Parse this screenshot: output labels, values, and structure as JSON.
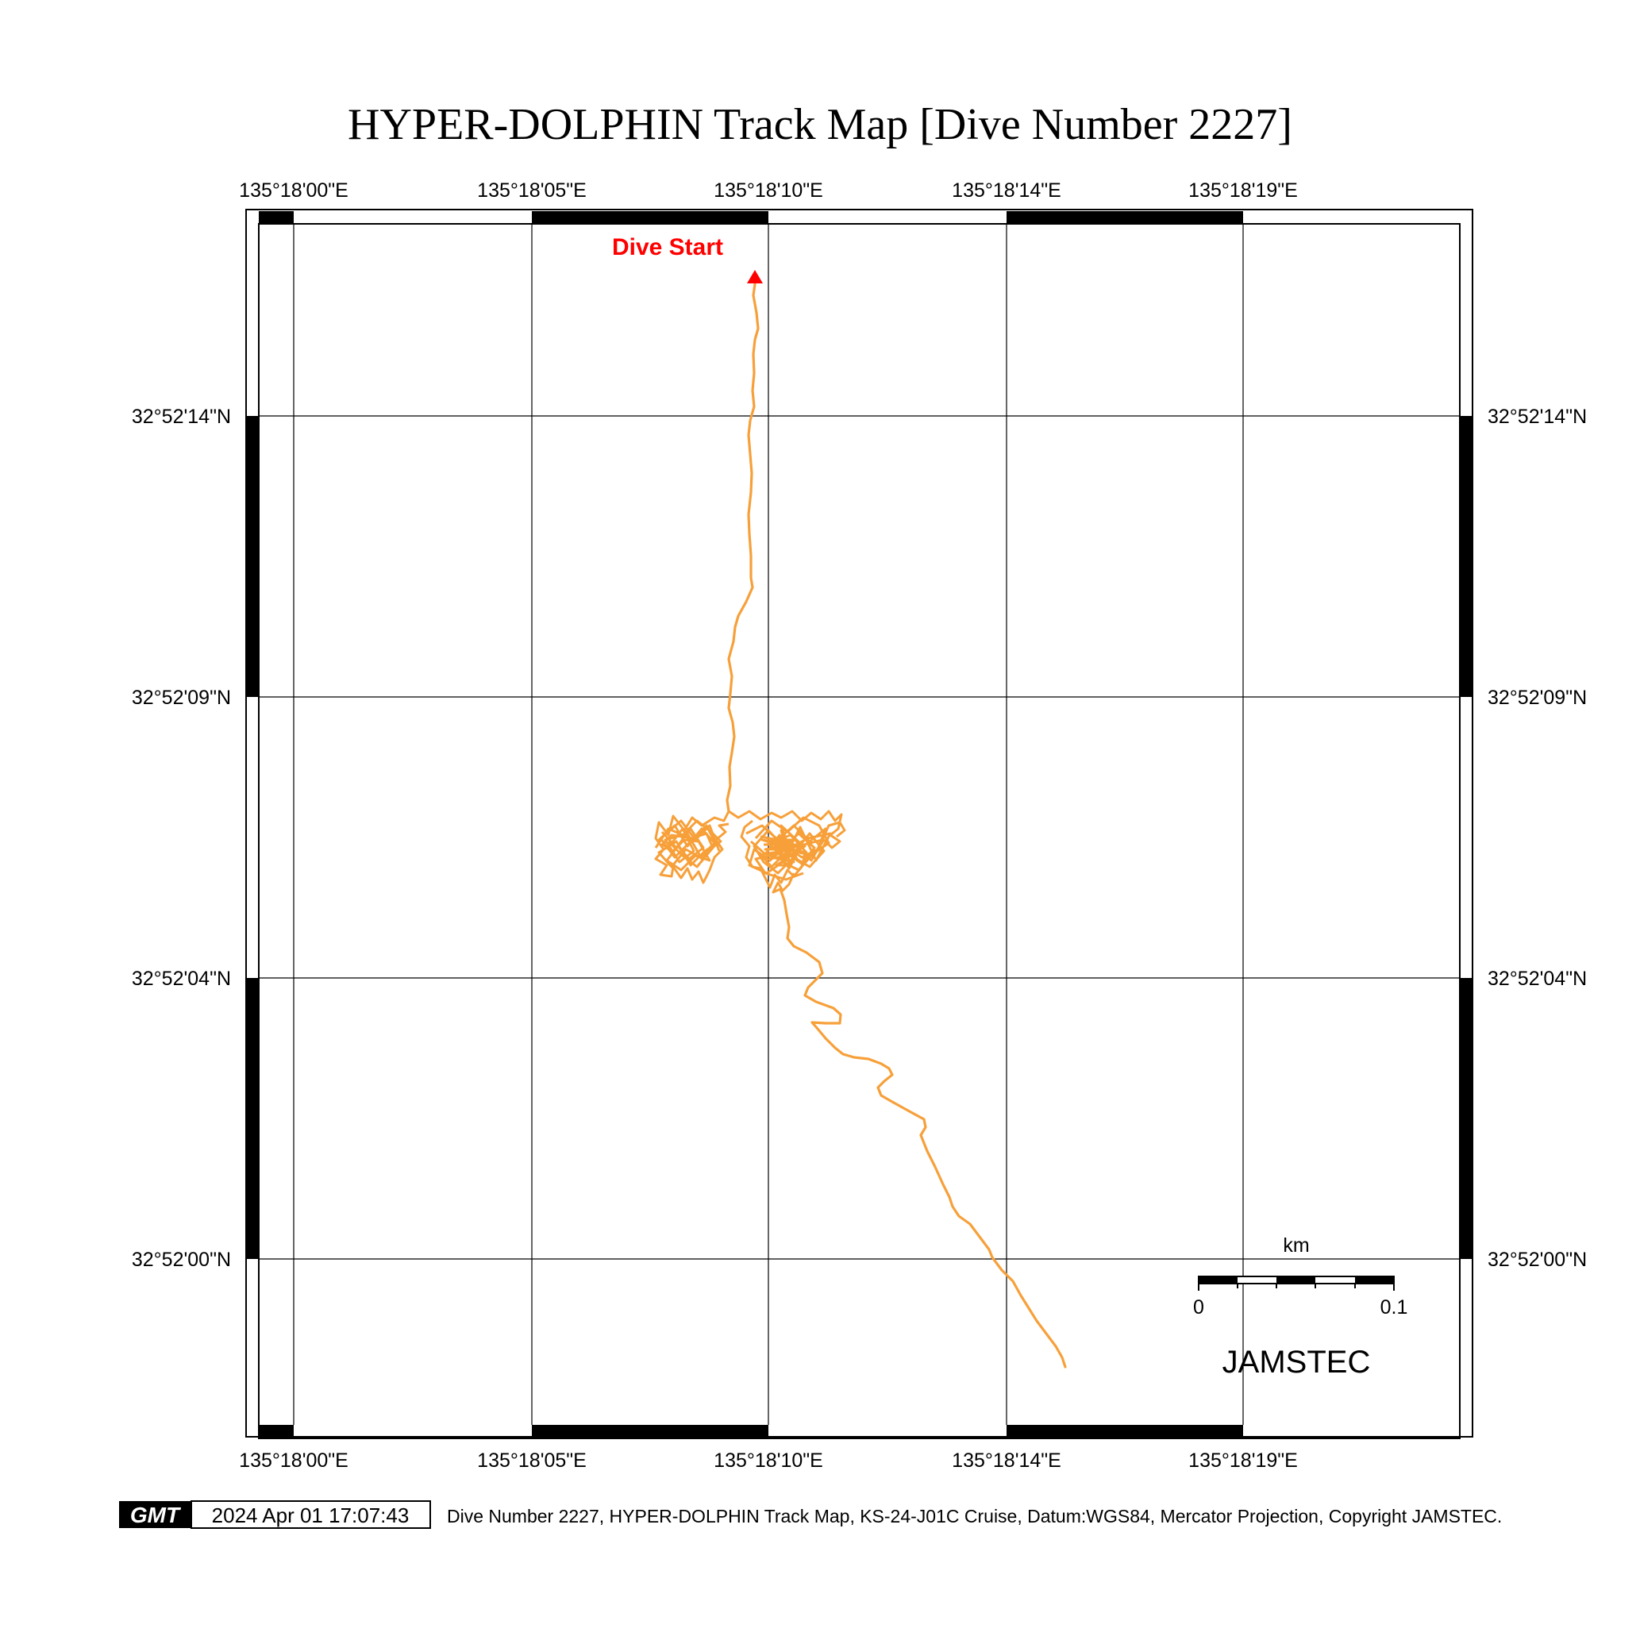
{
  "title": "HYPER-DOLPHIN Track Map [Dive Number 2227]",
  "lon_labels": [
    "135°18'00\"E",
    "135°18'05\"E",
    "135°18'10\"E",
    "135°18'14\"E",
    "135°18'19\"E"
  ],
  "lat_labels": [
    "32°52'14\"N",
    "32°52'09\"N",
    "32°52'04\"N",
    "32°52'00\"N"
  ],
  "start_label": "Dive Start",
  "scale": {
    "unit": "km",
    "min_label": "0",
    "max_label": "0.1"
  },
  "organization": "JAMSTEC",
  "footer": {
    "logo": "GMT",
    "timestamp": "2024 Apr 01 17:07:43",
    "caption": "Dive Number 2227, HYPER-DOLPHIN Track Map, KS-24-J01C Cruise, Datum:WGS84, Mercator Projection, Copyright JAMSTEC."
  },
  "colors": {
    "track": "#f7a03a",
    "start_marker": "#ff0000",
    "frame": "#000000",
    "grid": "#000000"
  }
}
